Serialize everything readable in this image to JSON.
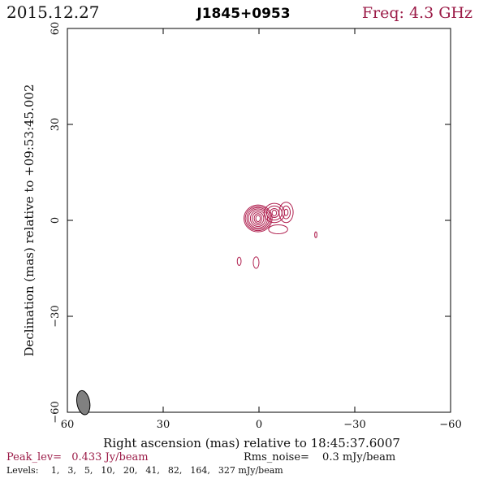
{
  "header": {
    "date": "2015.12.27",
    "source": "J1845+0953",
    "frequency": "Freq: 4.3 GHz"
  },
  "chart_data": {
    "type": "contour",
    "xlabel": "Right ascension (mas) relative to 18:45:37.6007",
    "ylabel": "Declination (mas) relative to +09:53:45.002",
    "xlim": [
      60,
      -60
    ],
    "ylim": [
      -60,
      60
    ],
    "xticks": [
      60,
      30,
      0,
      -30,
      -60
    ],
    "yticks": [
      60,
      30,
      0,
      -30,
      -60
    ],
    "xtick_labels": [
      "60",
      "30",
      "0",
      "−30",
      "−60"
    ],
    "ytick_labels": [
      "60",
      "30",
      "0",
      "−30",
      "−60"
    ],
    "contour_color": "#b0204f",
    "peak_label": "Peak_lev=",
    "peak_value": "0.433 Jy/beam",
    "rms_label": "Rms_noise=",
    "rms_value": "0.3 mJy/beam",
    "levels_label": "Levels:",
    "levels": [
      "1,",
      "3,",
      "5,",
      "10,",
      "20,",
      "41,",
      "82,",
      "164,",
      "327 mJy/beam"
    ],
    "beam": {
      "x": 55,
      "y": -57,
      "major": 3.8,
      "minor": 2.0,
      "pa_deg": -10
    },
    "components": [
      {
        "name": "core",
        "cx": 0.3,
        "cy": 0.6,
        "contours": [
          {
            "rx": 4.4,
            "ry": 4.2
          },
          {
            "rx": 4.0,
            "ry": 3.8
          },
          {
            "rx": 3.5,
            "ry": 3.4
          },
          {
            "rx": 3.0,
            "ry": 3.0
          },
          {
            "rx": 2.4,
            "ry": 2.5
          },
          {
            "rx": 1.8,
            "ry": 2.0
          },
          {
            "rx": 1.2,
            "ry": 1.5
          },
          {
            "rx": 0.7,
            "ry": 1.0
          }
        ]
      },
      {
        "name": "jet-knot",
        "cx": -4.8,
        "cy": 2.3,
        "contours": [
          {
            "rx": 3.2,
            "ry": 3.0
          },
          {
            "rx": 2.4,
            "ry": 2.2
          },
          {
            "rx": 1.4,
            "ry": 1.4
          },
          {
            "rx": 0.7,
            "ry": 0.9
          }
        ]
      },
      {
        "name": "jet-tail",
        "cx": -8.5,
        "cy": 2.5,
        "contours": [
          {
            "rx": 2.2,
            "ry": 3.2
          },
          {
            "rx": 1.3,
            "ry": 2.0
          },
          {
            "rx": 0.6,
            "ry": 1.0
          }
        ]
      },
      {
        "name": "jet-extension",
        "cx": -6.0,
        "cy": -2.8,
        "contours": [
          {
            "rx": 3.0,
            "ry": 1.4
          }
        ]
      },
      {
        "name": "blob-right",
        "cx": -17.8,
        "cy": -4.5,
        "contours": [
          {
            "rx": 0.35,
            "ry": 0.9
          }
        ]
      },
      {
        "name": "blob-lower-left",
        "cx": 6.2,
        "cy": -12.8,
        "contours": [
          {
            "rx": 0.6,
            "ry": 1.3
          }
        ]
      },
      {
        "name": "blob-lower-center",
        "cx": 0.9,
        "cy": -13.2,
        "contours": [
          {
            "rx": 0.9,
            "ry": 1.8
          }
        ]
      }
    ]
  }
}
